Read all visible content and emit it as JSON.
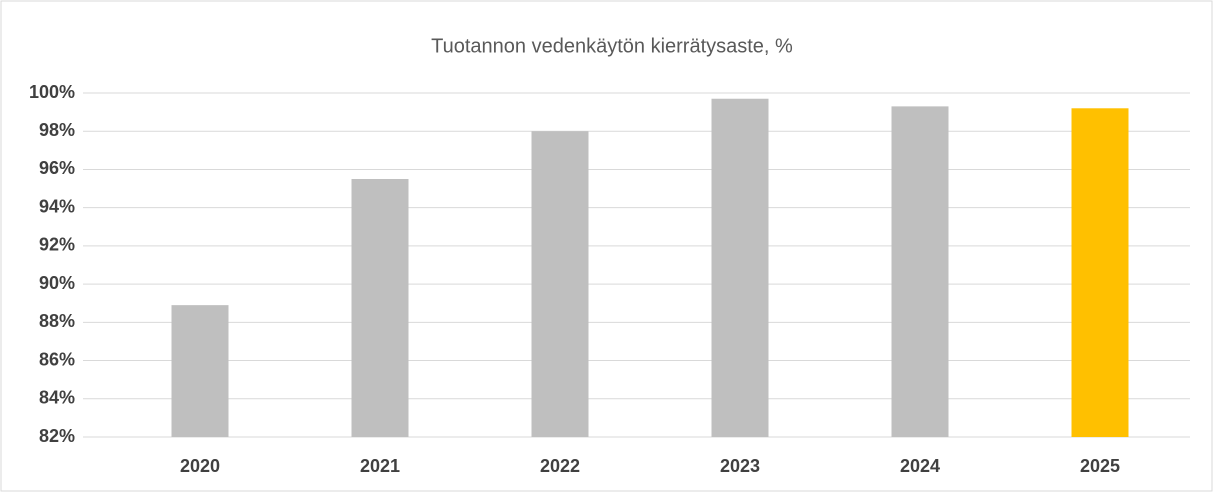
{
  "chart_data": {
    "type": "bar",
    "title": "Tuotannon vedenkäytön kierrätysaste, %",
    "categories": [
      "2020",
      "2021",
      "2022",
      "2023",
      "2024",
      "2025"
    ],
    "values": [
      88.9,
      95.5,
      98.0,
      99.7,
      99.3,
      99.2
    ],
    "colors": [
      "#bfbfbf",
      "#bfbfbf",
      "#bfbfbf",
      "#bfbfbf",
      "#bfbfbf",
      "#ffc000"
    ],
    "ylim": [
      82,
      100
    ],
    "yticks": [
      {
        "value": 82,
        "label": "82%"
      },
      {
        "value": 84,
        "label": "84%"
      },
      {
        "value": 86,
        "label": "86%"
      },
      {
        "value": 88,
        "label": "88%"
      },
      {
        "value": 90,
        "label": "90%"
      },
      {
        "value": 92,
        "label": "92%"
      },
      {
        "value": 94,
        "label": "94%"
      },
      {
        "value": 96,
        "label": "96%"
      },
      {
        "value": 98,
        "label": "98%"
      },
      {
        "value": 100,
        "label": "100%"
      }
    ],
    "grid": true
  }
}
